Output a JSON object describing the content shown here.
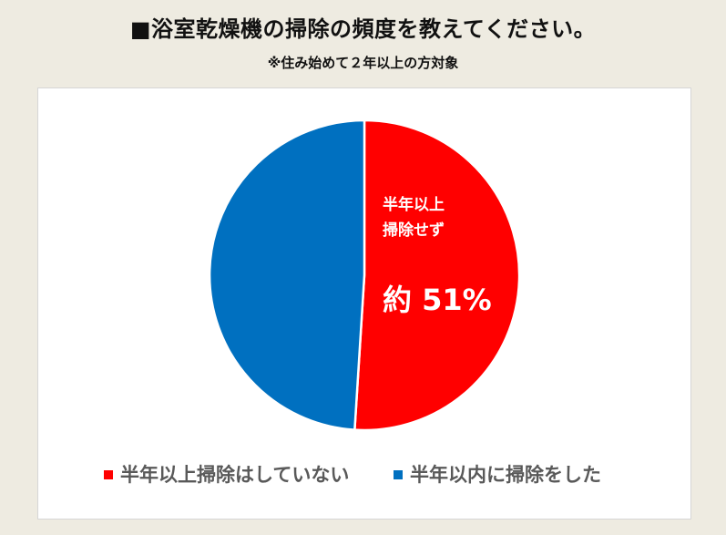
{
  "title": "■浴室乾燥機の掃除の頻度を教えてください。",
  "subtitle": "※住み始めて２年以上の方対象",
  "colors": {
    "background": "#eeebe1",
    "panel": "#ffffff",
    "series_red": "#ff0000",
    "series_blue": "#0070c0",
    "legend_text": "#595959",
    "label_text": "#ffffff"
  },
  "chart_data": {
    "type": "pie",
    "start_angle_deg": 0,
    "direction": "clockwise",
    "slices": [
      {
        "name": "半年以上掃除はしていない",
        "value": 51,
        "color": "#ff0000",
        "label_lines": [
          "半年以上",
          "掃除せず"
        ],
        "value_label": "約 51%"
      },
      {
        "name": "半年以内に掃除をした",
        "value": 49,
        "color": "#0070c0"
      }
    ],
    "legend": {
      "position": "bottom",
      "entries": [
        "半年以上掃除はしていない",
        "半年以内に掃除をした"
      ]
    }
  }
}
